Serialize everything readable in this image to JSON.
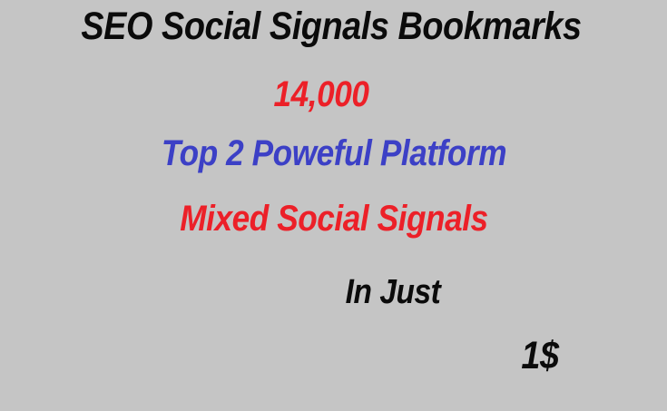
{
  "banner": {
    "background_color": "#c5c5c5",
    "text_colors": {
      "black": "#0b0b0b",
      "red": "#ec2028",
      "blue": "#3c40c6"
    },
    "lines": [
      {
        "text": "SEO Social Signals Bookmarks",
        "color": "#0b0b0b"
      },
      {
        "text": "14,000",
        "color": "#ec2028"
      },
      {
        "text": "Top 2 Poweful Platform",
        "color": "#3c40c6"
      },
      {
        "text": "Mixed Social Signals",
        "color": "#ec2028"
      },
      {
        "text": "In Just",
        "color": "#0b0b0b"
      },
      {
        "text": "1$",
        "color": "#0b0b0b"
      }
    ]
  }
}
